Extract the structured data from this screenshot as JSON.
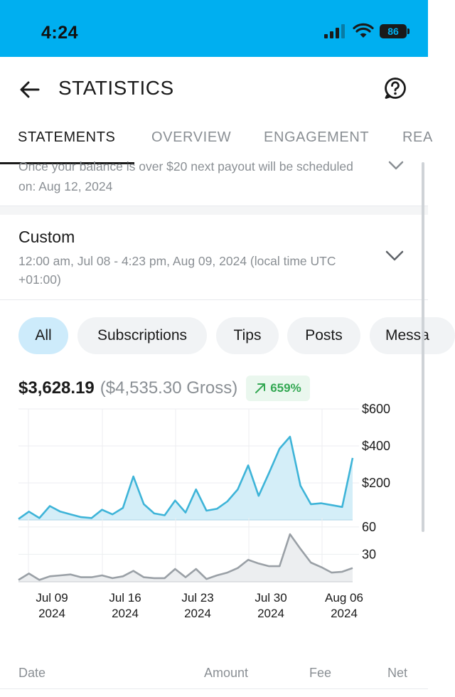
{
  "status_bar": {
    "time": "4:24",
    "battery": "86",
    "signal_icon": "cellular-signal-icon",
    "wifi_icon": "wifi-icon"
  },
  "header": {
    "title": "STATISTICS",
    "back_icon": "arrow-left-icon",
    "help_icon": "help-circle-icon"
  },
  "tabs": [
    {
      "label": "STATEMENTS",
      "active": true
    },
    {
      "label": "OVERVIEW",
      "active": false
    },
    {
      "label": "ENGAGEMENT",
      "active": false
    },
    {
      "label": "REA",
      "active": false
    }
  ],
  "payout_note": {
    "text": "Once your balance is over $20 next payout will be scheduled on: Aug 12, 2024"
  },
  "date_range": {
    "title": "Custom",
    "description": "12:00 am, Jul 08 - 4:23 pm, Aug 09, 2024 (local time UTC +01:00)"
  },
  "filters": [
    {
      "label": "All",
      "active": true
    },
    {
      "label": "Subscriptions",
      "active": false
    },
    {
      "label": "Tips",
      "active": false
    },
    {
      "label": "Posts",
      "active": false
    },
    {
      "label": "Messa",
      "active": false
    }
  ],
  "totals": {
    "net": "$3,628.19",
    "gross": "($4,535.30 Gross)",
    "growth": "659%",
    "growth_icon": "trend-up-arrow-icon"
  },
  "colors": {
    "accent": "#00aff0",
    "earnings_line": "#3eb4d8",
    "earnings_fill": "#d4eef8",
    "count_line": "#9aa0a6",
    "count_fill": "#eceef0",
    "growth_green": "#34a853"
  },
  "chart_data": [
    {
      "type": "area",
      "name": "earnings",
      "x": [
        "Jul 08",
        "Jul 09",
        "Jul 10",
        "Jul 11",
        "Jul 12",
        "Jul 13",
        "Jul 14",
        "Jul 15",
        "Jul 16",
        "Jul 17",
        "Jul 18",
        "Jul 19",
        "Jul 20",
        "Jul 21",
        "Jul 22",
        "Jul 23",
        "Jul 24",
        "Jul 25",
        "Jul 26",
        "Jul 27",
        "Jul 28",
        "Jul 29",
        "Jul 30",
        "Jul 31",
        "Aug 01",
        "Aug 02",
        "Aug 03",
        "Aug 04",
        "Aug 05",
        "Aug 06",
        "Aug 07",
        "Aug 08",
        "Aug 09"
      ],
      "values": [
        5,
        45,
        10,
        75,
        45,
        30,
        15,
        10,
        55,
        30,
        65,
        235,
        85,
        35,
        25,
        105,
        40,
        165,
        50,
        60,
        100,
        165,
        295,
        130,
        255,
        385,
        450,
        185,
        85,
        90,
        80,
        70,
        335
      ],
      "y_ticks": [
        "$600",
        "$400",
        "$200"
      ],
      "ylim": [
        0,
        600
      ],
      "grid": true
    },
    {
      "type": "area",
      "name": "count",
      "x": [
        "Jul 08",
        "Jul 09",
        "Jul 10",
        "Jul 11",
        "Jul 12",
        "Jul 13",
        "Jul 14",
        "Jul 15",
        "Jul 16",
        "Jul 17",
        "Jul 18",
        "Jul 19",
        "Jul 20",
        "Jul 21",
        "Jul 22",
        "Jul 23",
        "Jul 24",
        "Jul 25",
        "Jul 26",
        "Jul 27",
        "Jul 28",
        "Jul 29",
        "Jul 30",
        "Jul 31",
        "Aug 01",
        "Aug 02",
        "Aug 03",
        "Aug 04",
        "Aug 05",
        "Aug 06",
        "Aug 07",
        "Aug 08",
        "Aug 09"
      ],
      "values": [
        2,
        9,
        2,
        6,
        7,
        8,
        5,
        5,
        7,
        4,
        6,
        12,
        5,
        4,
        4,
        14,
        5,
        14,
        3,
        7,
        10,
        15,
        24,
        20,
        17,
        17,
        52,
        36,
        21,
        16,
        10,
        11,
        15
      ],
      "y_ticks": [
        "60",
        "30"
      ],
      "ylim": [
        0,
        70
      ],
      "grid": true
    }
  ],
  "x_axis_ticks": [
    {
      "date": "Jul 09",
      "year": "2024"
    },
    {
      "date": "Jul 16",
      "year": "2024"
    },
    {
      "date": "Jul 23",
      "year": "2024"
    },
    {
      "date": "Jul 30",
      "year": "2024"
    },
    {
      "date": "Aug 06",
      "year": "2024"
    }
  ],
  "table_header": {
    "date": "Date",
    "amount": "Amount",
    "fee": "Fee",
    "net": "Net"
  }
}
